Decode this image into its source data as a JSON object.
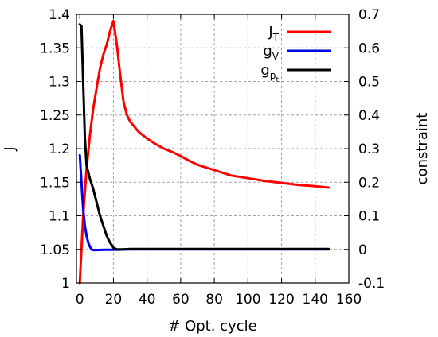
{
  "chart_data": {
    "type": "line",
    "xlabel": "# Opt. cycle",
    "ylabel": "J",
    "y2label": "constraint",
    "xlim": [
      -2,
      160
    ],
    "ylim": [
      1.0,
      1.4
    ],
    "y2lim": [
      -0.1,
      0.7
    ],
    "xticks": [
      0,
      20,
      40,
      60,
      80,
      100,
      120,
      140,
      160
    ],
    "yticks": [
      1,
      1.05,
      1.1,
      1.15,
      1.2,
      1.25,
      1.3,
      1.35,
      1.4
    ],
    "y2ticks": [
      -0.1,
      0,
      0.1,
      0.2,
      0.3,
      0.4,
      0.5,
      0.6,
      0.7
    ],
    "grid": true,
    "legend_position": "top-right",
    "series": [
      {
        "name": "J",
        "name_sub": "T",
        "axis": "left",
        "color": "#ff0000",
        "x": [
          0,
          2,
          4,
          6,
          8,
          10,
          12,
          14,
          16,
          18,
          20,
          22,
          24,
          26,
          28,
          30,
          35,
          40,
          45,
          50,
          55,
          60,
          65,
          70,
          80,
          90,
          100,
          110,
          120,
          130,
          140,
          148
        ],
        "y": [
          1.0,
          1.1,
          1.17,
          1.22,
          1.26,
          1.29,
          1.32,
          1.34,
          1.355,
          1.375,
          1.39,
          1.355,
          1.31,
          1.27,
          1.25,
          1.24,
          1.225,
          1.215,
          1.207,
          1.2,
          1.195,
          1.189,
          1.182,
          1.176,
          1.168,
          1.16,
          1.156,
          1.152,
          1.149,
          1.146,
          1.144,
          1.142
        ]
      },
      {
        "name": "g",
        "name_sub": "V",
        "axis": "right",
        "color": "#0000ee",
        "x": [
          0,
          1,
          2,
          3,
          4,
          5,
          6,
          7,
          8,
          10,
          15,
          20,
          30,
          50,
          80,
          110,
          148
        ],
        "y": [
          0.28,
          0.2,
          0.12,
          0.07,
          0.04,
          0.02,
          0.008,
          0.0,
          -0.002,
          -0.002,
          -0.001,
          -0.001,
          0.0,
          0.0,
          0.0,
          0.0,
          0.0
        ]
      },
      {
        "name": "g",
        "name_sub": "p",
        "name_subsub": "t",
        "axis": "right",
        "color": "#000000",
        "x": [
          0,
          1,
          2,
          3,
          4,
          6,
          8,
          10,
          12,
          14,
          16,
          18,
          20,
          22,
          25,
          30,
          40,
          60,
          80,
          100,
          120,
          148
        ],
        "y": [
          0.67,
          0.665,
          0.5,
          0.33,
          0.25,
          0.21,
          0.18,
          0.14,
          0.1,
          0.07,
          0.04,
          0.02,
          0.005,
          0.0,
          0.0,
          0.001,
          0.001,
          0.001,
          0.001,
          0.001,
          0.001,
          0.001
        ]
      }
    ]
  }
}
